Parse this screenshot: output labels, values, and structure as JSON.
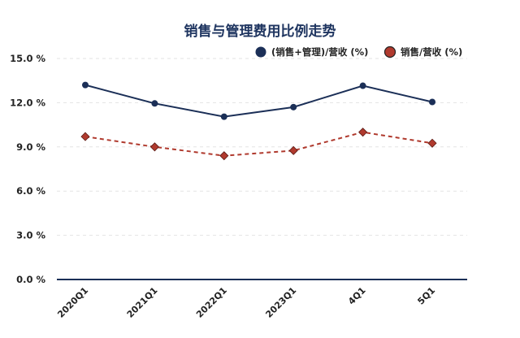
{
  "chart_data": {
    "type": "line",
    "title": "销售与管理费用比例走势",
    "categories": [
      "2020Q1",
      "2021Q1",
      "2022Q1",
      "2023Q1",
      "4Q1",
      "5Q1"
    ],
    "y_ticks": [
      "0.0 %",
      "3.0 %",
      "6.0 %",
      "9.0 %",
      "12.0 %",
      "15.0 %"
    ],
    "ylim": [
      0,
      15
    ],
    "grid": true,
    "legend_position": "top-right",
    "series": [
      {
        "name": "(销售+管理)/营收 (%)",
        "values": [
          13.2,
          11.95,
          11.05,
          11.7,
          13.15,
          12.05
        ],
        "color": "#1b2f57",
        "marker": "circle",
        "line": "solid"
      },
      {
        "name": "销售/营收 (%)",
        "values": [
          9.7,
          9.0,
          8.4,
          8.75,
          10.0,
          9.25
        ],
        "color": "#b03a2e",
        "marker": "diamond",
        "line": "dashed"
      }
    ]
  }
}
